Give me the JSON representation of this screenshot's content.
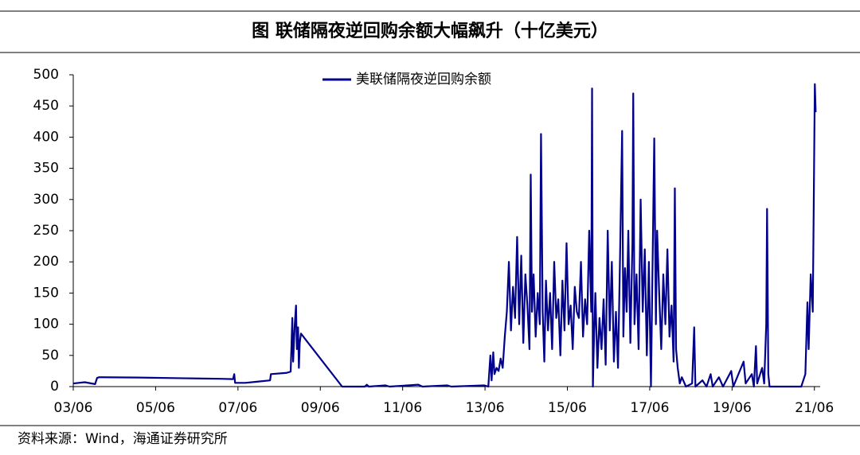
{
  "chart_data": {
    "type": "line",
    "title": "图  联储隔夜逆回购余额大幅飙升（十亿美元）",
    "source": "资料来源：Wind，海通证券研究所",
    "legend": "top center",
    "grid": false,
    "xlim": [
      2003.42,
      2021.56
    ],
    "xticks": [
      {
        "value": 2003.42,
        "label": "03/06"
      },
      {
        "value": 2005.42,
        "label": "05/06"
      },
      {
        "value": 2007.42,
        "label": "07/06"
      },
      {
        "value": 2009.42,
        "label": "09/06"
      },
      {
        "value": 2011.42,
        "label": "11/06"
      },
      {
        "value": 2013.42,
        "label": "13/06"
      },
      {
        "value": 2015.42,
        "label": "15/06"
      },
      {
        "value": 2017.42,
        "label": "17/06"
      },
      {
        "value": 2019.42,
        "label": "19/06"
      },
      {
        "value": 2021.42,
        "label": "21/06"
      }
    ],
    "ylim": [
      0,
      500
    ],
    "yticks": [
      0,
      50,
      100,
      150,
      200,
      250,
      300,
      350,
      400,
      450,
      500
    ],
    "x": [
      2003.42,
      2003.7,
      2003.95,
      2004.0,
      2004.05,
      2005,
      2006,
      2007,
      2007.3,
      2007.33,
      2007.35,
      2007.6,
      2007.9,
      2008.2,
      2008.22,
      2008.6,
      2008.7,
      2008.74,
      2008.76,
      2008.8,
      2008.83,
      2008.85,
      2008.88,
      2008.9,
      2008.92,
      2008.95,
      2009.95,
      2010.5,
      2010.55,
      2010.6,
      2011.0,
      2011.1,
      2011.8,
      2011.9,
      2012.5,
      2012.6,
      2013.4,
      2013.5,
      2013.55,
      2013.58,
      2013.62,
      2013.65,
      2013.7,
      2013.75,
      2013.8,
      2013.85,
      2013.9,
      2013.95,
      2014.0,
      2014.05,
      2014.1,
      2014.15,
      2014.2,
      2014.25,
      2014.3,
      2014.35,
      2014.4,
      2014.45,
      2014.5,
      2014.53,
      2014.56,
      2014.6,
      2014.65,
      2014.7,
      2014.75,
      2014.78,
      2014.82,
      2014.86,
      2014.9,
      2014.95,
      2015.0,
      2015.05,
      2015.1,
      2015.15,
      2015.2,
      2015.25,
      2015.3,
      2015.35,
      2015.4,
      2015.45,
      2015.5,
      2015.55,
      2015.6,
      2015.65,
      2015.7,
      2015.75,
      2015.8,
      2015.85,
      2015.9,
      2015.95,
      2016.0,
      2016.02,
      2016.04,
      2016.06,
      2016.1,
      2016.15,
      2016.2,
      2016.25,
      2016.3,
      2016.35,
      2016.4,
      2016.45,
      2016.5,
      2016.55,
      2016.6,
      2016.65,
      2016.7,
      2016.75,
      2016.78,
      2016.82,
      2016.86,
      2016.9,
      2016.95,
      2017.0,
      2017.02,
      2017.05,
      2017.1,
      2017.15,
      2017.2,
      2017.25,
      2017.3,
      2017.35,
      2017.4,
      2017.45,
      2017.48,
      2017.53,
      2017.57,
      2017.6,
      2017.65,
      2017.7,
      2017.75,
      2017.8,
      2017.85,
      2017.9,
      2017.95,
      2018.0,
      2018.03,
      2018.06,
      2018.1,
      2018.15,
      2018.2,
      2018.3,
      2018.45,
      2018.5,
      2018.53,
      2018.7,
      2018.8,
      2018.9,
      2018.95,
      2019.1,
      2019.2,
      2019.4,
      2019.45,
      2019.7,
      2019.75,
      2019.9,
      2019.95,
      2020.0,
      2020.03,
      2020.15,
      2020.2,
      2020.25,
      2020.27,
      2020.3,
      2020.33,
      2021.1,
      2021.2,
      2021.25,
      2021.28,
      2021.33,
      2021.38,
      2021.43,
      2021.45
    ],
    "series": [
      {
        "name": "美联储隔夜逆回购余额",
        "color": "#00008b",
        "values": [
          5,
          7,
          4,
          14,
          15,
          14.5,
          13.5,
          12.5,
          12,
          20,
          6,
          6,
          8,
          10,
          20,
          22,
          24,
          110,
          40,
          100,
          130,
          60,
          95,
          30,
          70,
          85,
          0,
          0,
          3,
          0,
          2,
          0,
          3,
          0,
          2,
          0,
          2,
          0,
          50,
          10,
          55,
          20,
          30,
          25,
          45,
          30,
          80,
          120,
          200,
          90,
          160,
          110,
          240,
          100,
          210,
          70,
          180,
          130,
          60,
          340,
          120,
          180,
          80,
          150,
          100,
          405,
          120,
          40,
          170,
          90,
          150,
          60,
          200,
          110,
          140,
          50,
          170,
          90,
          230,
          100,
          130,
          60,
          160,
          120,
          110,
          200,
          80,
          140,
          100,
          250,
          120,
          478,
          0,
          60,
          150,
          30,
          110,
          60,
          140,
          35,
          250,
          90,
          200,
          40,
          120,
          30,
          210,
          410,
          80,
          190,
          120,
          250,
          70,
          230,
          470,
          100,
          180,
          60,
          300,
          120,
          220,
          50,
          200,
          0,
          150,
          398,
          100,
          250,
          150,
          60,
          180,
          100,
          220,
          80,
          130,
          40,
          318,
          60,
          30,
          5,
          15,
          0,
          5,
          95,
          0,
          10,
          0,
          20,
          0,
          15,
          0,
          25,
          0,
          40,
          5,
          20,
          0,
          65,
          5,
          30,
          5,
          100,
          285,
          20,
          0,
          0,
          20,
          135,
          60,
          180,
          120,
          485,
          440
        ]
      }
    ]
  }
}
